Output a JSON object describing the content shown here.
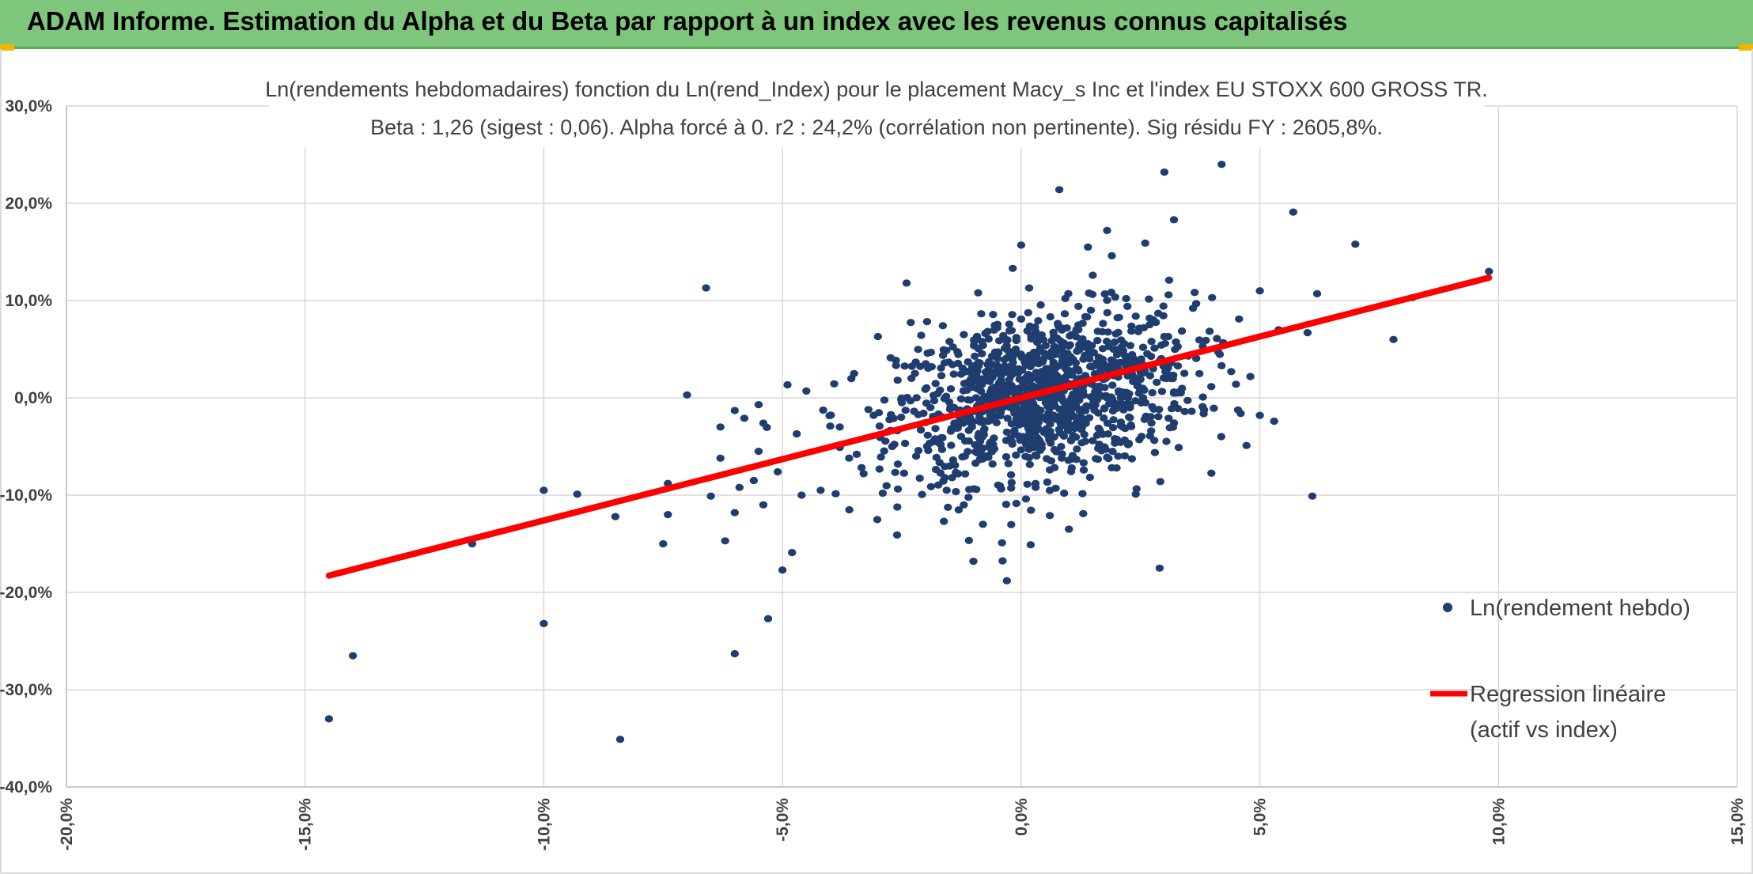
{
  "header": {
    "title": "ADAM Informe. Estimation du Alpha et du Beta par rapport à un index avec les revenus connus capitalisés"
  },
  "colors": {
    "banner": "#7dc67b",
    "points": "#1f3d6e",
    "regression": "#ff0000",
    "grid": "#d9d9d9",
    "corner_accent": "#f4b400"
  },
  "chart_data": {
    "type": "scatter",
    "title": "Ln(rendements hebdomadaires) fonction du Ln(rend_Index) pour le placement Macy_s Inc et l'index EU STOXX 600 GROSS TR.",
    "subtitle": "Beta : 1,26 (sigest : 0,06). Alpha forcé à 0. r2 : 24,2% (corrélation non pertinente). Sig résidu FY : 2605,8%.",
    "xlabel": "",
    "ylabel": "",
    "xlim": [
      -20,
      15
    ],
    "ylim": [
      -40,
      30
    ],
    "x_ticks": [
      -20,
      -15,
      -10,
      -5,
      0,
      5,
      10,
      15
    ],
    "y_ticks": [
      30,
      20,
      10,
      0,
      -10,
      -20,
      -30,
      -40
    ],
    "x_tick_labels": [
      "-20,0%",
      "-15,0%",
      "-10,0%",
      "-5,0%",
      "0,0%",
      "5,0%",
      "10,0%",
      "15,0%"
    ],
    "y_tick_labels": [
      "30,0%",
      "20,0%",
      "10,0%",
      "0,0%",
      "-10,0%",
      "-20,0%",
      "-30,0%",
      "-40,0%"
    ],
    "grid": true,
    "legend_position": "right",
    "legend": [
      {
        "label": "Ln(rendement hebdo)",
        "marker": "dot"
      },
      {
        "label_lines": [
          "Regression linéaire",
          "(actif vs index)"
        ],
        "marker": "line"
      }
    ],
    "regression": {
      "beta": 1.26,
      "alpha": 0,
      "x_range": [
        -14.5,
        9.8
      ]
    },
    "series": [
      {
        "name": "Ln(rendement hebdo)",
        "points": [
          [
            -14.5,
            -33.0
          ],
          [
            -14.0,
            -26.5
          ],
          [
            -11.5,
            -15.0
          ],
          [
            -10.0,
            -9.5
          ],
          [
            -10.0,
            -23.2
          ],
          [
            -9.3,
            -9.9
          ],
          [
            -8.5,
            -12.2
          ],
          [
            -8.4,
            -35.1
          ],
          [
            -7.5,
            -15.0
          ],
          [
            -7.4,
            -8.8
          ],
          [
            -7.4,
            -12.0
          ],
          [
            -7.0,
            0.3
          ],
          [
            -6.6,
            11.3
          ],
          [
            -6.5,
            -10.1
          ],
          [
            -6.3,
            -3.0
          ],
          [
            -6.3,
            -6.2
          ],
          [
            -6.2,
            -14.7
          ],
          [
            -6.0,
            -1.3
          ],
          [
            -6.0,
            -11.8
          ],
          [
            -6.0,
            -26.3
          ],
          [
            -5.9,
            -9.2
          ],
          [
            -5.8,
            -2.1
          ],
          [
            -5.6,
            -8.5
          ],
          [
            -5.5,
            -0.7
          ],
          [
            -5.5,
            -5.5
          ],
          [
            -5.4,
            -2.6
          ],
          [
            -5.4,
            -11.0
          ],
          [
            -5.3,
            -22.7
          ],
          [
            -5.1,
            -7.6
          ],
          [
            -5.0,
            -17.7
          ],
          [
            -4.8,
            -15.9
          ],
          [
            -4.7,
            -3.7
          ],
          [
            -4.6,
            -10.0
          ],
          [
            -4.5,
            0.7
          ],
          [
            -4.2,
            -9.5
          ],
          [
            -4.0,
            -2.9
          ],
          [
            -3.8,
            -5.1
          ],
          [
            -3.6,
            -11.5
          ],
          [
            -3.5,
            2.5
          ],
          [
            -3.3,
            -7.8
          ],
          [
            -3.0,
            6.3
          ],
          [
            -2.9,
            -9.8
          ],
          [
            -2.8,
            -3.5
          ],
          [
            -2.6,
            -14.1
          ],
          [
            -2.4,
            11.8
          ],
          [
            -2.2,
            -6.0
          ],
          [
            -2.0,
            3.5
          ],
          [
            -1.8,
            -4.2
          ],
          [
            -1.6,
            -8.2
          ],
          [
            -1.5,
            5.8
          ],
          [
            -1.3,
            -1.5
          ],
          [
            -1.2,
            -11.0
          ],
          [
            -1.0,
            -16.8
          ],
          [
            -0.9,
            10.8
          ],
          [
            -0.8,
            -13.0
          ],
          [
            -0.6,
            -4.8
          ],
          [
            -0.5,
            7.2
          ],
          [
            -0.4,
            -14.9
          ],
          [
            -0.3,
            -18.8
          ],
          [
            -0.2,
            -8.7
          ],
          [
            0.0,
            15.7
          ],
          [
            0.1,
            -10.4
          ],
          [
            0.2,
            -15.1
          ],
          [
            0.4,
            3.6
          ],
          [
            0.6,
            -12.1
          ],
          [
            0.8,
            21.4
          ],
          [
            0.9,
            -9.8
          ],
          [
            1.0,
            -13.5
          ],
          [
            1.2,
            9.4
          ],
          [
            1.3,
            -11.9
          ],
          [
            1.4,
            15.5
          ],
          [
            1.5,
            12.6
          ],
          [
            1.8,
            17.2
          ],
          [
            1.9,
            14.6
          ],
          [
            2.0,
            -7.2
          ],
          [
            2.2,
            10.2
          ],
          [
            2.4,
            -9.9
          ],
          [
            2.6,
            15.9
          ],
          [
            2.9,
            -17.5
          ],
          [
            3.0,
            23.2
          ],
          [
            3.1,
            12.1
          ],
          [
            3.2,
            18.3
          ],
          [
            3.3,
            -5.1
          ],
          [
            3.6,
            9.2
          ],
          [
            4.0,
            10.3
          ],
          [
            4.2,
            24.0
          ],
          [
            4.4,
            2.7
          ],
          [
            4.6,
            -1.6
          ],
          [
            5.0,
            11.0
          ],
          [
            5.0,
            -1.8
          ],
          [
            5.3,
            -2.4
          ],
          [
            5.7,
            19.1
          ],
          [
            6.0,
            6.7
          ],
          [
            6.1,
            -10.1
          ],
          [
            6.2,
            10.7
          ],
          [
            7.0,
            15.8
          ],
          [
            7.8,
            6.0
          ],
          [
            8.2,
            10.3
          ],
          [
            9.8,
            13.0
          ],
          [
            -3.8,
            -3.0
          ],
          [
            -3.2,
            -1.2
          ],
          [
            -2.7,
            -5.0
          ],
          [
            -2.5,
            -0.5
          ],
          [
            -2.3,
            2.0
          ],
          [
            -2.1,
            -3.3
          ],
          [
            -1.9,
            -1.0
          ],
          [
            -1.7,
            0.8
          ],
          [
            -1.4,
            -2.6
          ],
          [
            -1.1,
            1.5
          ],
          [
            -0.9,
            -4.0
          ],
          [
            -0.7,
            2.8
          ],
          [
            -0.5,
            -0.3
          ],
          [
            -0.3,
            4.1
          ],
          [
            -0.1,
            -2.2
          ],
          [
            0.1,
            0.9
          ],
          [
            0.3,
            -3.5
          ],
          [
            0.5,
            2.2
          ],
          [
            0.7,
            -0.8
          ],
          [
            0.9,
            4.6
          ],
          [
            1.1,
            -1.9
          ],
          [
            1.3,
            1.2
          ],
          [
            1.5,
            -4.4
          ],
          [
            1.7,
            3.1
          ],
          [
            1.9,
            -0.2
          ],
          [
            2.1,
            5.2
          ],
          [
            2.3,
            -2.8
          ],
          [
            2.5,
            1.9
          ],
          [
            2.7,
            -3.9
          ],
          [
            2.9,
            3.8
          ],
          [
            3.2,
            0.6
          ],
          [
            3.5,
            4.3
          ],
          [
            3.8,
            -0.9
          ],
          [
            4.1,
            6.1
          ],
          [
            4.5,
            1.4
          ],
          [
            -1.2,
            6.5
          ],
          [
            -0.6,
            -6.8
          ],
          [
            0.0,
            8.1
          ],
          [
            0.6,
            -7.4
          ],
          [
            1.2,
            7.0
          ],
          [
            1.8,
            -6.1
          ],
          [
            2.4,
            8.4
          ],
          [
            -1.5,
            -7.0
          ],
          [
            -0.8,
            5.4
          ],
          [
            0.3,
            -8.8
          ]
        ]
      }
    ]
  }
}
